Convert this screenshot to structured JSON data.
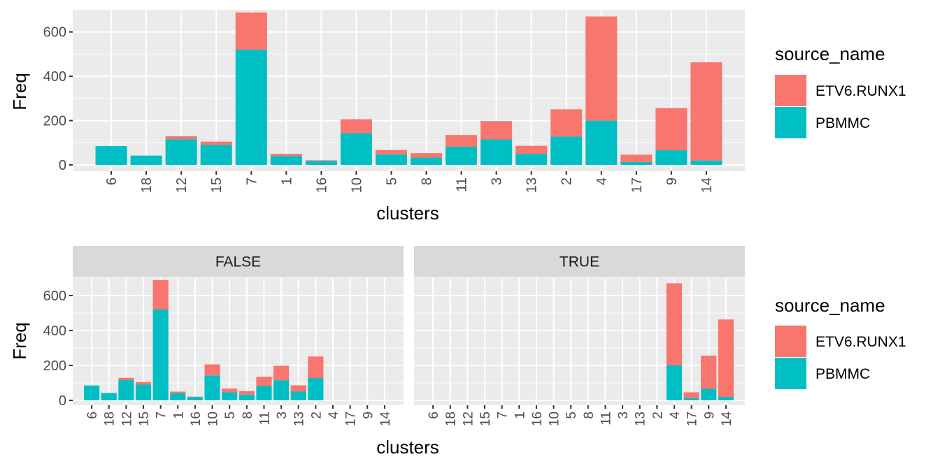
{
  "colors": {
    "panel_bg": "#EBEBEB",
    "grid": "#FFFFFF",
    "strip_bg": "#D9D9D9",
    "axis_text": "#4D4D4D",
    "title_text": "#000000",
    "series": {
      "ETV6.RUNX1": "#F8766D",
      "PBMMC": "#00BFC4"
    }
  },
  "chart_data": [
    {
      "type": "bar",
      "stacked": true,
      "xlabel": "clusters",
      "ylabel": "Freq",
      "ylim": [
        0,
        700
      ],
      "yticks": [
        0,
        200,
        400,
        600
      ],
      "categories": [
        "6",
        "18",
        "12",
        "15",
        "7",
        "1",
        "16",
        "10",
        "5",
        "8",
        "11",
        "3",
        "13",
        "2",
        "4",
        "17",
        "9",
        "14"
      ],
      "series": [
        {
          "name": "ETV6.RUNX1",
          "values": [
            0,
            0,
            13,
            15,
            168,
            10,
            3,
            63,
            20,
            20,
            53,
            83,
            36,
            123,
            470,
            33,
            190,
            443
          ]
        },
        {
          "name": "PBMMC",
          "values": [
            85,
            42,
            116,
            90,
            520,
            40,
            18,
            143,
            47,
            33,
            82,
            115,
            50,
            128,
            200,
            13,
            66,
            20
          ]
        }
      ],
      "legend": {
        "title": "source_name",
        "entries": [
          "ETV6.RUNX1",
          "PBMMC"
        ],
        "position": "right"
      },
      "grid": true
    },
    {
      "type": "bar",
      "stacked": true,
      "facets": [
        "FALSE",
        "TRUE"
      ],
      "facet_categories": {
        "FALSE": [
          "6",
          "18",
          "12",
          "15",
          "7",
          "1",
          "16",
          "10",
          "5",
          "8",
          "11",
          "3",
          "13",
          "2"
        ],
        "TRUE": [
          "4",
          "17",
          "9",
          "14"
        ]
      },
      "xlabel": "clusters",
      "ylabel": "Freq",
      "ylim": [
        0,
        700
      ],
      "yticks": [
        0,
        200,
        400,
        600
      ],
      "categories": [
        "6",
        "18",
        "12",
        "15",
        "7",
        "1",
        "16",
        "10",
        "5",
        "8",
        "11",
        "3",
        "13",
        "2",
        "4",
        "17",
        "9",
        "14"
      ],
      "series": [
        {
          "name": "ETV6.RUNX1",
          "values": [
            0,
            0,
            13,
            15,
            168,
            10,
            3,
            63,
            20,
            20,
            53,
            83,
            36,
            123,
            470,
            33,
            190,
            443
          ]
        },
        {
          "name": "PBMMC",
          "values": [
            85,
            42,
            116,
            90,
            520,
            40,
            18,
            143,
            47,
            33,
            82,
            115,
            50,
            128,
            200,
            13,
            66,
            20
          ]
        }
      ],
      "legend": {
        "title": "source_name",
        "entries": [
          "ETV6.RUNX1",
          "PBMMC"
        ],
        "position": "right"
      },
      "grid": true
    }
  ]
}
